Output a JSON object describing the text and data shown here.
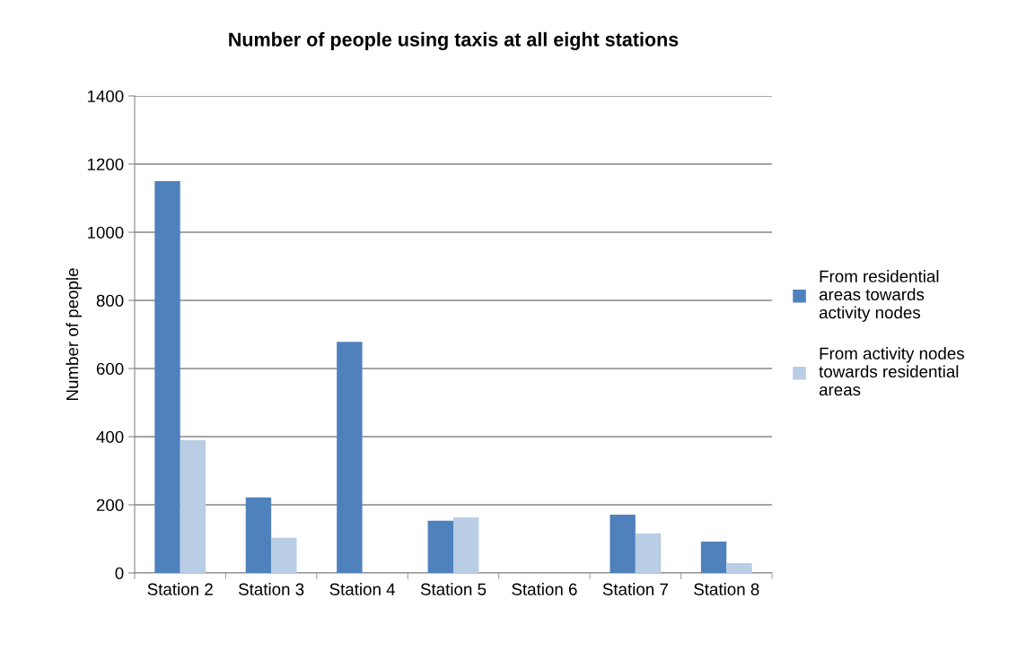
{
  "chart_data": {
    "type": "bar",
    "title": "Number of people using taxis at all eight stations",
    "ylabel": "Number of people",
    "categories": [
      "Station 2",
      "Station 3",
      "Station 4",
      "Station 5",
      "Station 6",
      "Station 7",
      "Station 8"
    ],
    "series": [
      {
        "name": "From residential areas towards activity nodes",
        "color": "#4f81bd",
        "values": [
          1150,
          222,
          678,
          153,
          0,
          171,
          92
        ]
      },
      {
        "name": "From activity nodes towards residential areas",
        "color": "#b9cde5",
        "values": [
          390,
          103,
          0,
          163,
          0,
          116,
          29
        ]
      }
    ],
    "ylim": [
      0,
      1400
    ],
    "yticks": [
      0,
      200,
      400,
      600,
      800,
      1000,
      1200,
      1400
    ],
    "grid": "y",
    "legend": "right"
  }
}
